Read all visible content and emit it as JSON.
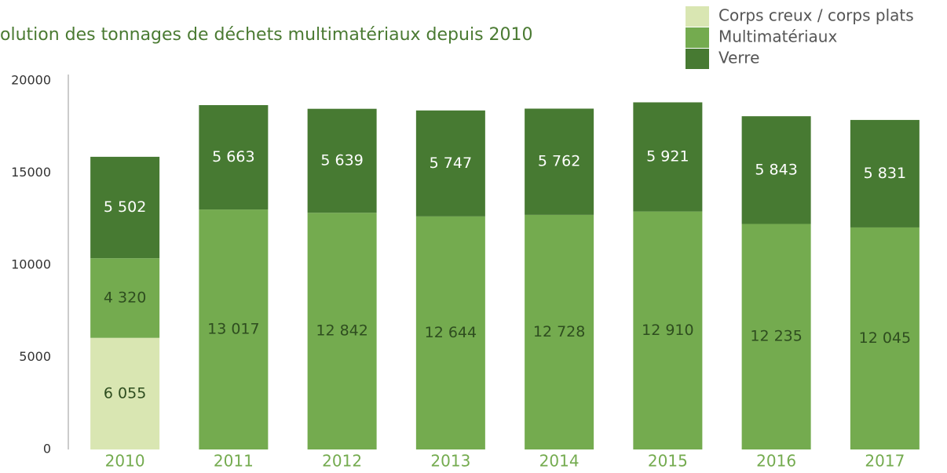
{
  "chart_data": {
    "type": "stacked_bar",
    "title": "olution des tonnages de déchets multimatériaux depuis 2010",
    "categories": [
      "2010",
      "2011",
      "2012",
      "2013",
      "2014",
      "2015",
      "2016",
      "2017"
    ],
    "series": [
      {
        "name": "Corps creux / corps plats",
        "color": "#d9e6b2",
        "values": [
          6055,
          null,
          null,
          null,
          null,
          null,
          null,
          null
        ],
        "value_labels": [
          "6 055",
          null,
          null,
          null,
          null,
          null,
          null,
          null
        ],
        "label_color": "#2e4d1f"
      },
      {
        "name": "Multimatériaux",
        "color": "#74ab4f",
        "values": [
          4320,
          13017,
          12842,
          12644,
          12728,
          12910,
          12235,
          12045
        ],
        "value_labels": [
          "4 320",
          "13 017",
          "12 842",
          "12 644",
          "12 728",
          "12 910",
          "12 235",
          "12 045"
        ],
        "label_color": "#2e4d1f"
      },
      {
        "name": "Verre",
        "color": "#477a32",
        "values": [
          5502,
          5663,
          5639,
          5747,
          5762,
          5921,
          5843,
          5831
        ],
        "value_labels": [
          "5 502",
          "5 663",
          "5 639",
          "5 747",
          "5 762",
          "5 921",
          "5 843",
          "5 831"
        ],
        "label_color": "#ffffff"
      }
    ],
    "ylim": [
      0,
      20000
    ],
    "yticks": [
      0,
      5000,
      10000,
      15000,
      20000
    ],
    "legend": "top-right"
  }
}
